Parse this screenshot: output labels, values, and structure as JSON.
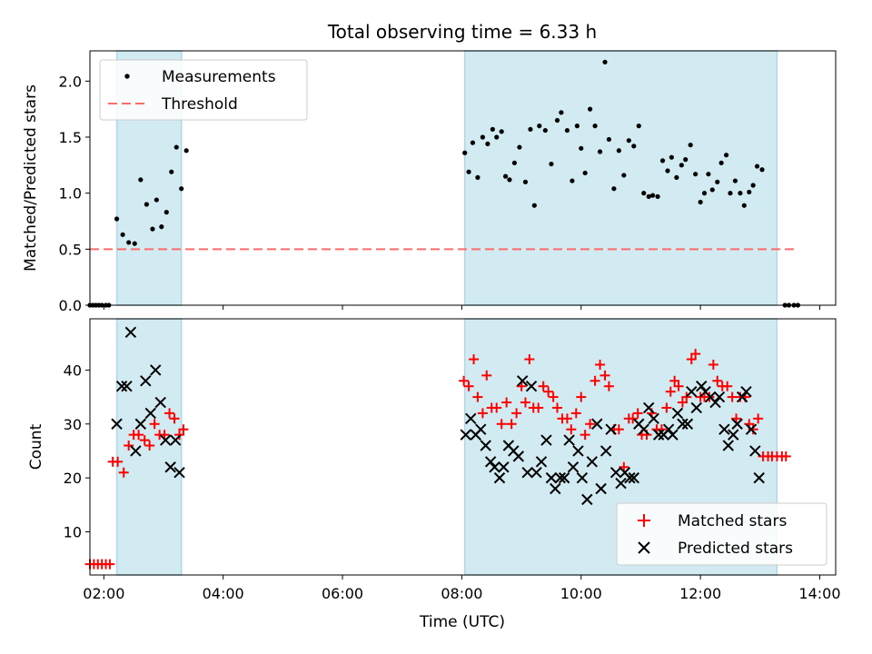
{
  "chart_data": {
    "type": "scatter",
    "title": "Total observing time = 6.33 h",
    "xlabel": "Time (UTC)",
    "xlim": [
      "01:46",
      "14:16"
    ],
    "xticks": [
      "02:00",
      "04:00",
      "06:00",
      "08:00",
      "10:00",
      "12:00",
      "14:00"
    ],
    "observing_windows": [
      [
        "02:13",
        "03:18"
      ],
      [
        "08:03",
        "13:17"
      ]
    ],
    "colors": {
      "window": "#add8e6",
      "threshold": "#ff6b6b",
      "matched": "#ff0000",
      "predicted": "#000000",
      "measurement": "#000000"
    },
    "top": {
      "ylabel": "Matched/Predicted stars",
      "ylim": [
        0,
        2.27
      ],
      "yticks": [
        "0.0",
        "0.5",
        "1.0",
        "1.5",
        "2.0"
      ],
      "legend_position": "upper-left",
      "series": [
        {
          "name": "Measurements",
          "marker": "dot",
          "points": [
            [
              "01:46",
              0
            ],
            [
              "01:49",
              0
            ],
            [
              "01:52",
              0
            ],
            [
              "01:55",
              0
            ],
            [
              "01:58",
              0
            ],
            [
              "02:02",
              0
            ],
            [
              "02:05",
              0
            ],
            [
              "02:13",
              0.77
            ],
            [
              "02:19",
              0.63
            ],
            [
              "02:25",
              0.56
            ],
            [
              "02:31",
              0.55
            ],
            [
              "02:37",
              1.12
            ],
            [
              "02:43",
              0.9
            ],
            [
              "02:49",
              0.68
            ],
            [
              "02:53",
              0.94
            ],
            [
              "02:58",
              0.7
            ],
            [
              "03:03",
              0.83
            ],
            [
              "03:08",
              1.19
            ],
            [
              "03:13",
              1.41
            ],
            [
              "03:18",
              1.04
            ],
            [
              "03:23",
              1.38
            ],
            [
              "08:03",
              1.36
            ],
            [
              "08:07",
              1.19
            ],
            [
              "08:11",
              1.45
            ],
            [
              "08:16",
              1.14
            ],
            [
              "08:21",
              1.5
            ],
            [
              "08:26",
              1.44
            ],
            [
              "08:31",
              1.57
            ],
            [
              "08:35",
              1.5
            ],
            [
              "08:40",
              1.55
            ],
            [
              "08:44",
              1.15
            ],
            [
              "08:48",
              1.12
            ],
            [
              "08:53",
              1.27
            ],
            [
              "08:58",
              1.41
            ],
            [
              "09:04",
              1.1
            ],
            [
              "09:09",
              1.57
            ],
            [
              "09:13",
              0.89
            ],
            [
              "09:18",
              1.6
            ],
            [
              "09:24",
              1.56
            ],
            [
              "09:30",
              1.26
            ],
            [
              "09:36",
              1.65
            ],
            [
              "09:40",
              1.72
            ],
            [
              "09:46",
              1.56
            ],
            [
              "09:51",
              1.11
            ],
            [
              "09:56",
              1.6
            ],
            [
              "10:00",
              1.4
            ],
            [
              "10:04",
              1.18
            ],
            [
              "10:09",
              1.75
            ],
            [
              "10:14",
              1.6
            ],
            [
              "10:19",
              1.37
            ],
            [
              "10:24",
              2.17
            ],
            [
              "10:28",
              1.48
            ],
            [
              "10:33",
              1.04
            ],
            [
              "10:38",
              1.38
            ],
            [
              "10:43",
              1.16
            ],
            [
              "10:48",
              1.47
            ],
            [
              "10:53",
              1.42
            ],
            [
              "10:58",
              1.6
            ],
            [
              "11:03",
              1.0
            ],
            [
              "11:08",
              0.97
            ],
            [
              "11:12",
              0.98
            ],
            [
              "11:17",
              0.97
            ],
            [
              "11:22",
              1.29
            ],
            [
              "11:27",
              1.2
            ],
            [
              "11:31",
              1.32
            ],
            [
              "11:36",
              1.14
            ],
            [
              "11:41",
              1.25
            ],
            [
              "11:45",
              1.3
            ],
            [
              "11:50",
              1.43
            ],
            [
              "11:55",
              1.17
            ],
            [
              "12:00",
              0.92
            ],
            [
              "12:04",
              1.0
            ],
            [
              "12:08",
              1.17
            ],
            [
              "12:12",
              1.03
            ],
            [
              "12:17",
              1.1
            ],
            [
              "12:21",
              1.27
            ],
            [
              "12:26",
              1.34
            ],
            [
              "12:30",
              1.0
            ],
            [
              "12:35",
              1.11
            ],
            [
              "12:40",
              1.0
            ],
            [
              "12:44",
              0.89
            ],
            [
              "12:49",
              1.01
            ],
            [
              "12:53",
              1.07
            ],
            [
              "12:57",
              1.24
            ],
            [
              "13:02",
              1.21
            ],
            [
              "13:25",
              0
            ],
            [
              "13:29",
              0
            ],
            [
              "13:34",
              0
            ],
            [
              "13:38",
              0
            ]
          ]
        },
        {
          "name": "Threshold",
          "style": "dashed",
          "value": 0.5,
          "x_range": [
            "01:46",
            "13:38"
          ]
        }
      ]
    },
    "bottom": {
      "ylabel": "Count",
      "ylim": [
        2,
        49.5
      ],
      "yticks": [
        "10",
        "20",
        "30",
        "40"
      ],
      "legend_position": "lower-right",
      "series": [
        {
          "name": "Matched stars",
          "marker": "plus",
          "points": [
            [
              "01:46",
              4
            ],
            [
              "01:50",
              4
            ],
            [
              "01:54",
              4
            ],
            [
              "01:58",
              4
            ],
            [
              "02:02",
              4
            ],
            [
              "02:06",
              4
            ],
            [
              "02:09",
              23
            ],
            [
              "02:14",
              23
            ],
            [
              "02:20",
              21
            ],
            [
              "02:25",
              26
            ],
            [
              "02:30",
              28
            ],
            [
              "02:35",
              28
            ],
            [
              "02:41",
              27
            ],
            [
              "02:46",
              26
            ],
            [
              "02:51",
              30
            ],
            [
              "02:56",
              28
            ],
            [
              "03:01",
              28
            ],
            [
              "03:06",
              32
            ],
            [
              "03:11",
              31
            ],
            [
              "03:16",
              28
            ],
            [
              "03:20",
              29
            ],
            [
              "08:02",
              38
            ],
            [
              "08:07",
              37
            ],
            [
              "08:12",
              42
            ],
            [
              "08:16",
              35
            ],
            [
              "08:21",
              32
            ],
            [
              "08:25",
              39
            ],
            [
              "08:30",
              33
            ],
            [
              "08:35",
              33
            ],
            [
              "08:40",
              30
            ],
            [
              "08:45",
              34
            ],
            [
              "08:50",
              30
            ],
            [
              "08:55",
              32
            ],
            [
              "09:00",
              37
            ],
            [
              "09:04",
              34
            ],
            [
              "09:08",
              42
            ],
            [
              "09:12",
              33
            ],
            [
              "09:17",
              33
            ],
            [
              "09:22",
              37
            ],
            [
              "09:27",
              36
            ],
            [
              "09:32",
              35
            ],
            [
              "09:36",
              33
            ],
            [
              "09:41",
              31
            ],
            [
              "09:46",
              31
            ],
            [
              "09:50",
              29
            ],
            [
              "09:55",
              32
            ],
            [
              "10:00",
              35
            ],
            [
              "10:04",
              28
            ],
            [
              "10:09",
              30
            ],
            [
              "10:14",
              38
            ],
            [
              "10:19",
              41
            ],
            [
              "10:24",
              39
            ],
            [
              "10:28",
              37
            ],
            [
              "10:33",
              29
            ],
            [
              "10:38",
              29
            ],
            [
              "10:43",
              22
            ],
            [
              "10:48",
              31
            ],
            [
              "10:52",
              31
            ],
            [
              "10:57",
              32
            ],
            [
              "11:01",
              28
            ],
            [
              "11:06",
              28
            ],
            [
              "11:11",
              32
            ],
            [
              "11:16",
              29
            ],
            [
              "11:21",
              29
            ],
            [
              "11:26",
              33
            ],
            [
              "11:30",
              36
            ],
            [
              "11:34",
              38
            ],
            [
              "11:38",
              37
            ],
            [
              "11:42",
              34
            ],
            [
              "11:46",
              35
            ],
            [
              "11:51",
              42
            ],
            [
              "11:55",
              43
            ],
            [
              "12:00",
              35
            ],
            [
              "12:04",
              35
            ],
            [
              "12:09",
              35
            ],
            [
              "12:13",
              41
            ],
            [
              "12:17",
              38
            ],
            [
              "12:22",
              37
            ],
            [
              "12:27",
              37
            ],
            [
              "12:32",
              35
            ],
            [
              "12:36",
              31
            ],
            [
              "12:40",
              35
            ],
            [
              "12:45",
              35
            ],
            [
              "12:49",
              30
            ],
            [
              "12:53",
              29
            ],
            [
              "12:58",
              31
            ],
            [
              "13:03",
              24
            ],
            [
              "13:08",
              24
            ],
            [
              "13:12",
              24
            ],
            [
              "13:17",
              24
            ],
            [
              "13:22",
              24
            ],
            [
              "13:26",
              24
            ]
          ]
        },
        {
          "name": "Predicted stars",
          "marker": "x",
          "points": [
            [
              "02:13",
              30
            ],
            [
              "02:18",
              37
            ],
            [
              "02:23",
              37
            ],
            [
              "02:27",
              47
            ],
            [
              "02:32",
              25
            ],
            [
              "02:37",
              30
            ],
            [
              "02:42",
              38
            ],
            [
              "02:47",
              32
            ],
            [
              "02:52",
              40
            ],
            [
              "02:57",
              34
            ],
            [
              "03:02",
              27
            ],
            [
              "03:07",
              22
            ],
            [
              "03:12",
              27
            ],
            [
              "03:16",
              21
            ],
            [
              "08:04",
              28
            ],
            [
              "08:09",
              31
            ],
            [
              "08:14",
              28
            ],
            [
              "08:19",
              29
            ],
            [
              "08:24",
              26
            ],
            [
              "08:29",
              23
            ],
            [
              "08:33",
              22
            ],
            [
              "08:38",
              20
            ],
            [
              "08:42",
              22
            ],
            [
              "08:47",
              26
            ],
            [
              "08:52",
              25
            ],
            [
              "08:57",
              24
            ],
            [
              "09:01",
              38
            ],
            [
              "09:06",
              21
            ],
            [
              "09:10",
              37
            ],
            [
              "09:15",
              21
            ],
            [
              "09:20",
              23
            ],
            [
              "09:25",
              27
            ],
            [
              "09:30",
              20
            ],
            [
              "09:34",
              18
            ],
            [
              "09:39",
              20
            ],
            [
              "09:43",
              20
            ],
            [
              "09:48",
              27
            ],
            [
              "09:52",
              22
            ],
            [
              "09:57",
              25
            ],
            [
              "10:01",
              20
            ],
            [
              "10:06",
              16
            ],
            [
              "10:11",
              23
            ],
            [
              "10:16",
              30
            ],
            [
              "10:20",
              18
            ],
            [
              "10:25",
              25
            ],
            [
              "10:30",
              29
            ],
            [
              "10:35",
              21
            ],
            [
              "10:40",
              19
            ],
            [
              "10:44",
              21
            ],
            [
              "10:49",
              20
            ],
            [
              "10:53",
              20
            ],
            [
              "10:58",
              30
            ],
            [
              "11:03",
              29
            ],
            [
              "11:08",
              33
            ],
            [
              "11:13",
              31
            ],
            [
              "11:18",
              28
            ],
            [
              "11:23",
              28
            ],
            [
              "11:28",
              29
            ],
            [
              "11:32",
              28
            ],
            [
              "11:37",
              32
            ],
            [
              "11:42",
              30
            ],
            [
              "11:47",
              30
            ],
            [
              "11:51",
              36
            ],
            [
              "11:56",
              33
            ],
            [
              "12:01",
              37
            ],
            [
              "12:05",
              36
            ],
            [
              "12:10",
              35
            ],
            [
              "12:15",
              34
            ],
            [
              "12:19",
              35
            ],
            [
              "12:24",
              29
            ],
            [
              "12:28",
              26
            ],
            [
              "12:33",
              28
            ],
            [
              "12:37",
              30
            ],
            [
              "12:42",
              35
            ],
            [
              "12:46",
              36
            ],
            [
              "12:51",
              29
            ],
            [
              "12:55",
              25
            ],
            [
              "12:59",
              20
            ]
          ]
        }
      ]
    }
  }
}
